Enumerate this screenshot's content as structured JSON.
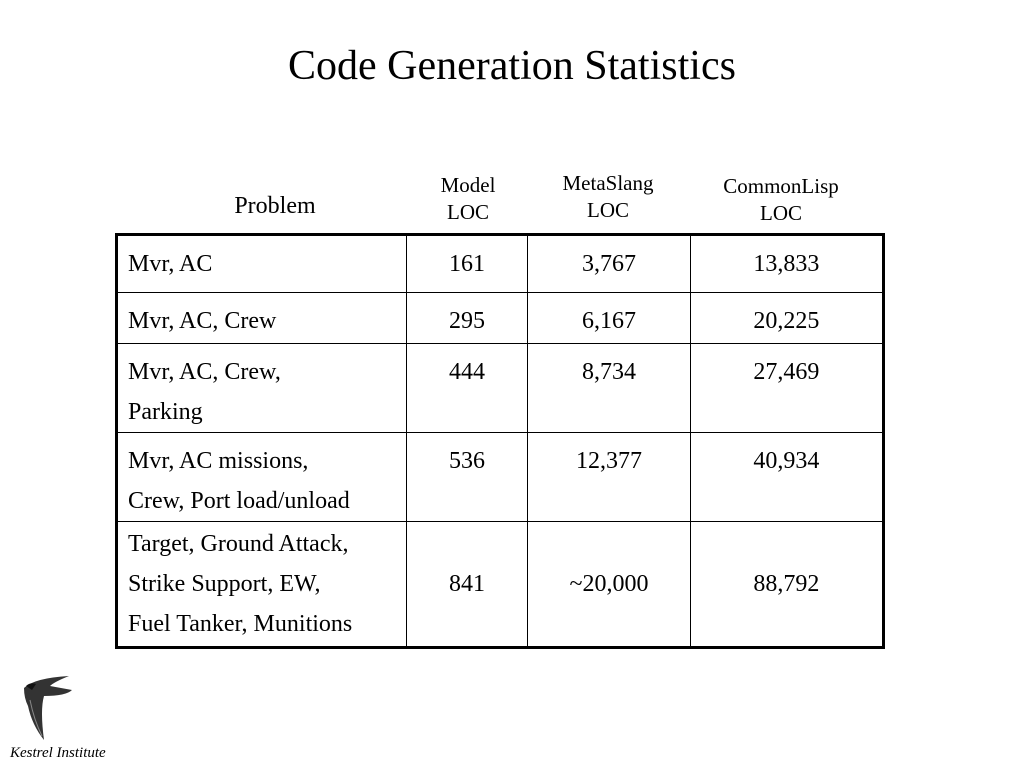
{
  "title": "Code Generation Statistics",
  "headers": {
    "problem": "Problem",
    "model": [
      "Model",
      "LOC"
    ],
    "metaslang": [
      "MetaSlang",
      "LOC"
    ],
    "commonlisp": [
      "CommonLisp",
      "LOC"
    ]
  },
  "rows": [
    {
      "problem": [
        "Mvr, AC"
      ],
      "model": "161",
      "metaslang": "3,767",
      "commonlisp": "13,833"
    },
    {
      "problem": [
        "Mvr, AC, Crew"
      ],
      "model": "295",
      "metaslang": "6,167",
      "commonlisp": "20,225"
    },
    {
      "problem": [
        "Mvr, AC, Crew,",
        "Parking"
      ],
      "model": "444",
      "metaslang": "8,734",
      "commonlisp": "27,469"
    },
    {
      "problem": [
        "Mvr, AC missions,",
        "Crew, Port load/unload"
      ],
      "model": "536",
      "metaslang": "12,377",
      "commonlisp": "40,934"
    },
    {
      "problem": [
        "Target, Ground Attack,",
        "Strike Support, EW,",
        "Fuel Tanker, Munitions"
      ],
      "model": "841",
      "metaslang": "~20,000",
      "commonlisp": "88,792"
    }
  ],
  "footer": {
    "logo": "kestrel-bird-logo",
    "institute": "Kestrel Institute"
  }
}
